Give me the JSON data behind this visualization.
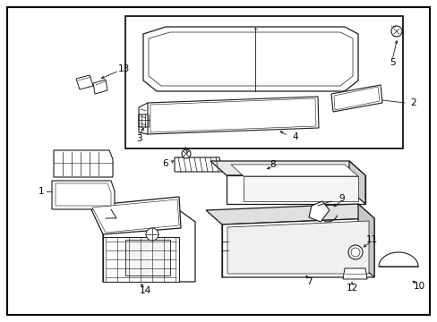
{
  "bg_color": "#ffffff",
  "border_color": "#000000",
  "line_color": "#1a1a1a",
  "text_color": "#000000",
  "fig_width": 4.89,
  "fig_height": 3.6,
  "dpi": 100
}
